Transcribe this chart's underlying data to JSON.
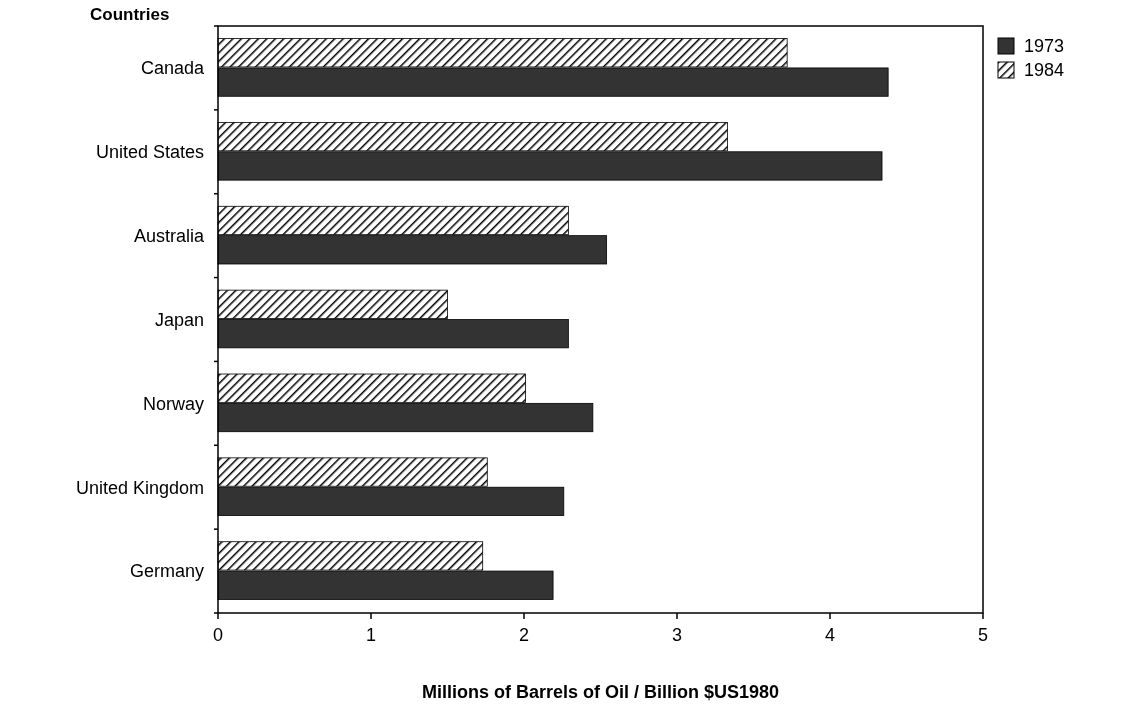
{
  "chart_data": {
    "type": "bar",
    "orientation": "horizontal",
    "ylabel": "Countries",
    "xlabel": "Millions of Barrels of Oil / Billion $US1980",
    "categories": [
      "Canada",
      "United States",
      "Australia",
      "Japan",
      "Norway",
      "United Kingdom",
      "Germany"
    ],
    "series": [
      {
        "name": "1973",
        "color": "#333333",
        "values": [
          4.38,
          4.34,
          2.54,
          2.29,
          2.45,
          2.26,
          2.19
        ]
      },
      {
        "name": "1984",
        "color": "#000000",
        "values": [
          3.72,
          3.33,
          2.29,
          1.5,
          2.01,
          1.76,
          1.73
        ]
      }
    ],
    "xlim": [
      0,
      5
    ],
    "xticks": [
      0,
      1,
      2,
      3,
      4,
      5
    ],
    "grid": false,
    "legend": "top right"
  }
}
